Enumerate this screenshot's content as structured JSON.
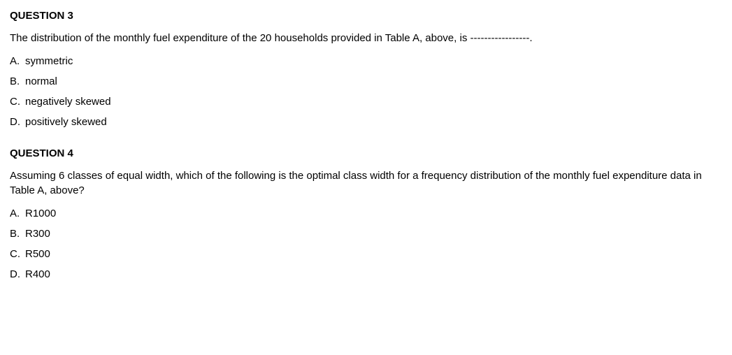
{
  "questions": [
    {
      "title": "QUESTION 3",
      "stem": "The distribution of the monthly fuel expenditure of the 20 households provided in Table A, above, is -----------------.",
      "options": [
        {
          "letter": "A.",
          "text": "symmetric"
        },
        {
          "letter": "B.",
          "text": "normal"
        },
        {
          "letter": "C.",
          "text": "negatively skewed"
        },
        {
          "letter": "D.",
          "text": "positively skewed"
        }
      ]
    },
    {
      "title": "QUESTION 4",
      "stem": "Assuming 6 classes of equal width, which of the following is the optimal class width for a frequency distribution of the monthly fuel expenditure data in Table A, above?",
      "options": [
        {
          "letter": "A.",
          "text": "R1000"
        },
        {
          "letter": "B.",
          "text": "R300"
        },
        {
          "letter": "C.",
          "text": "R500"
        },
        {
          "letter": "D.",
          "text": "R400"
        }
      ]
    }
  ]
}
